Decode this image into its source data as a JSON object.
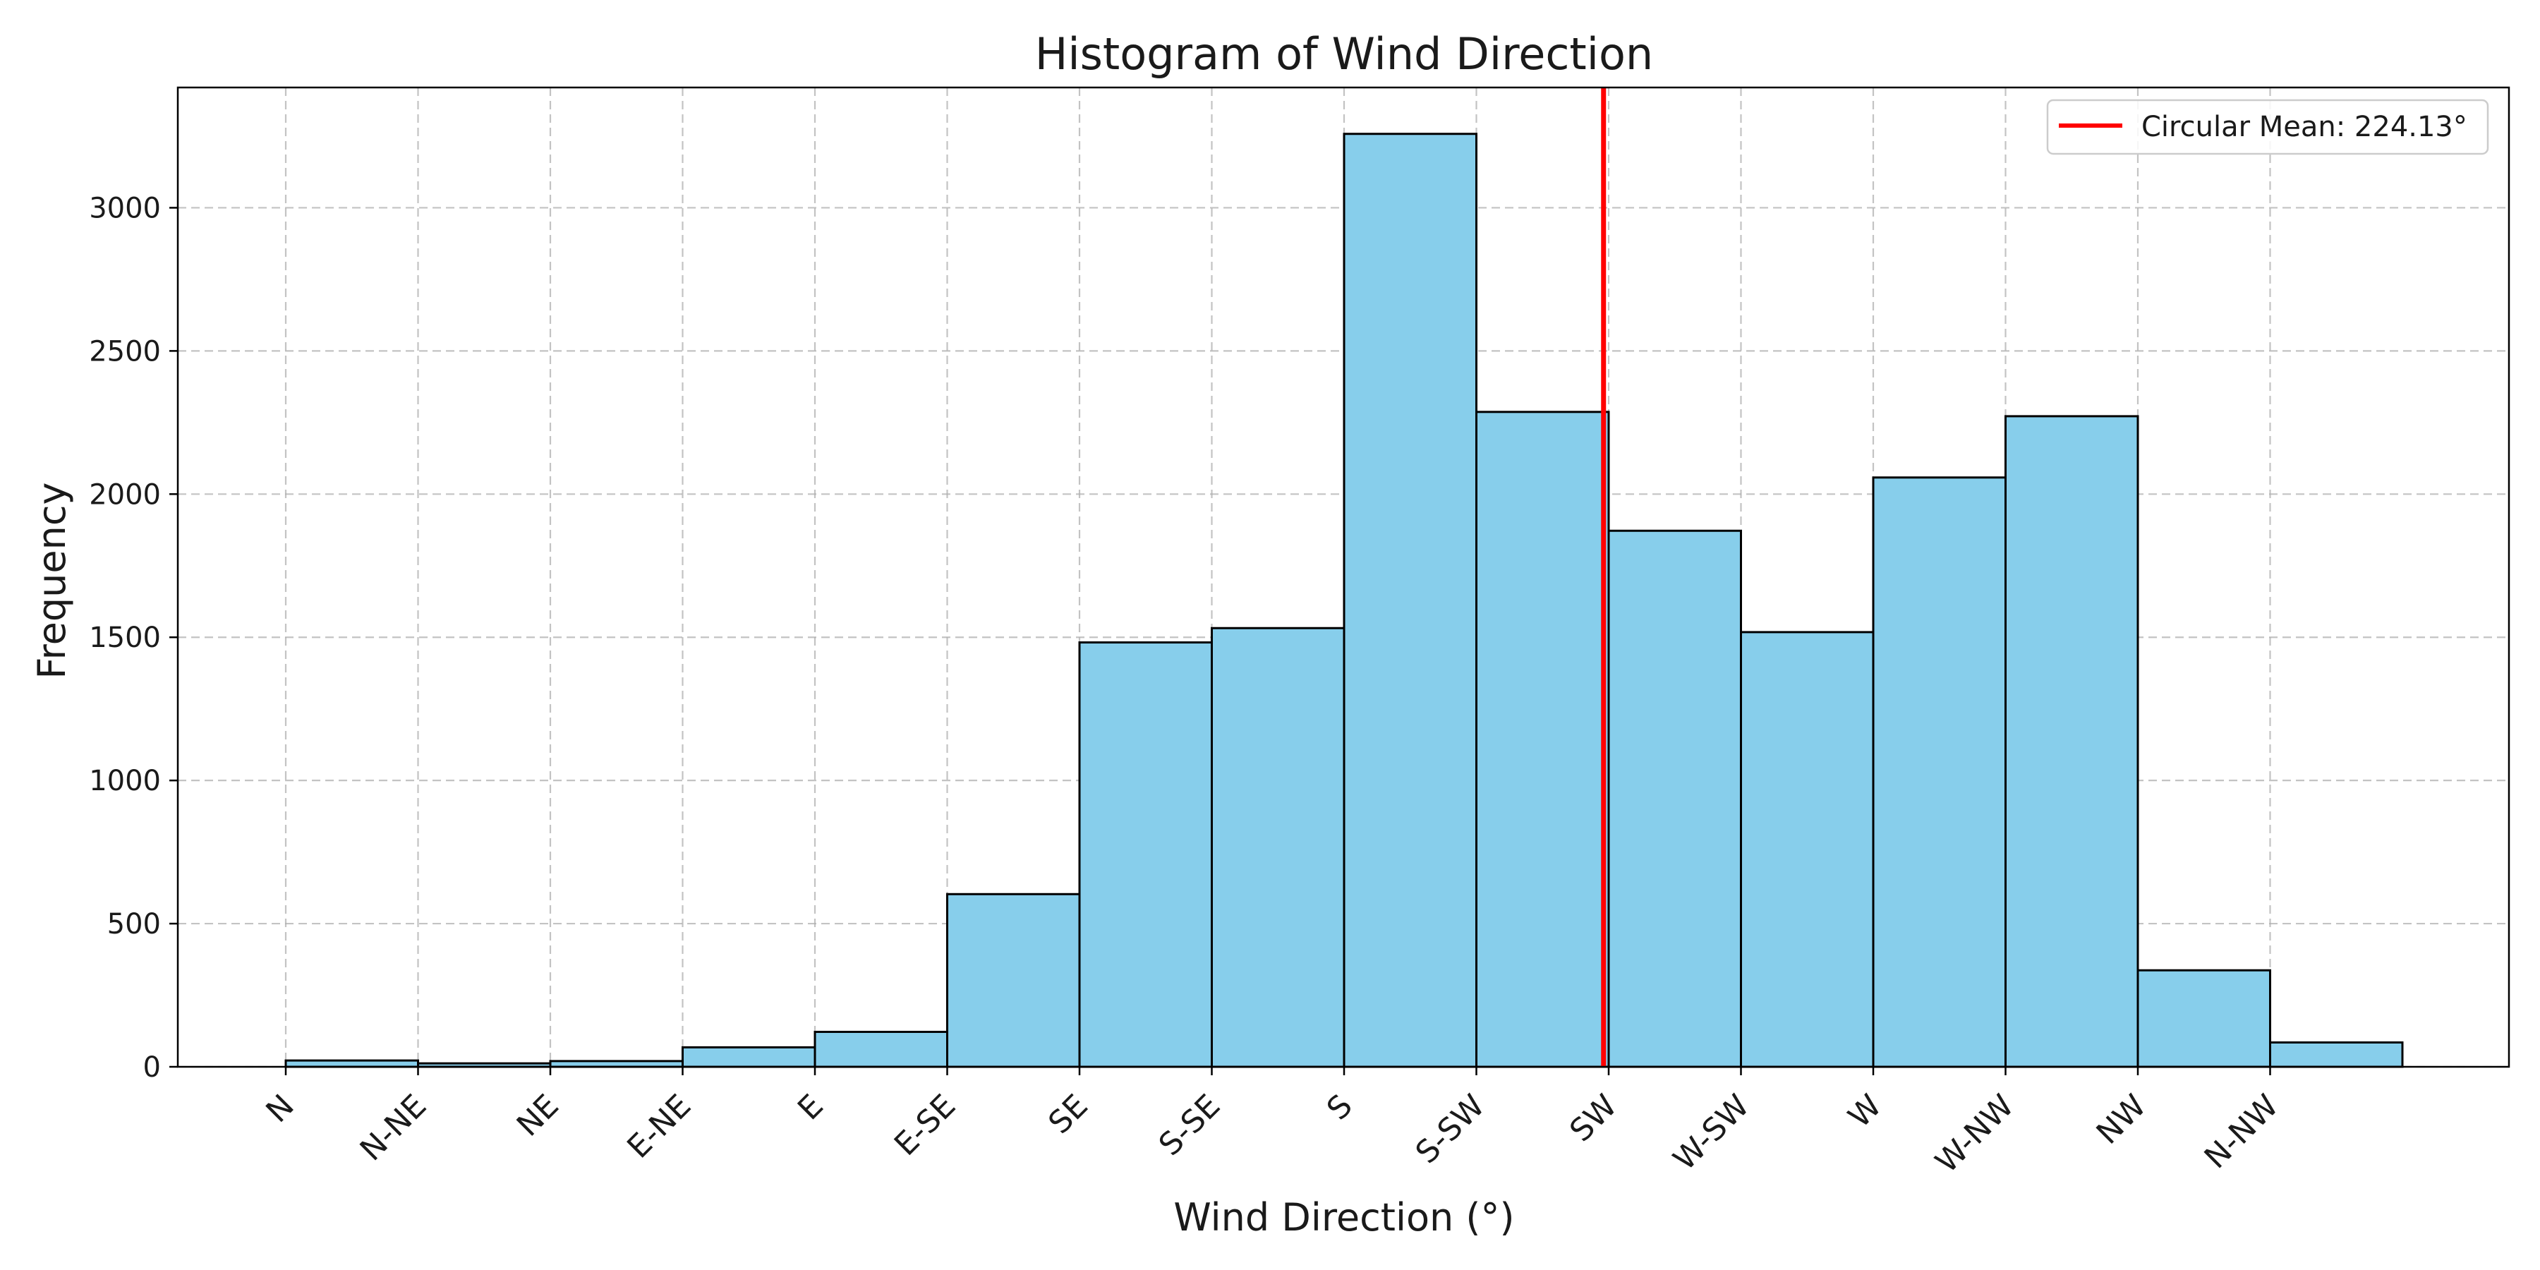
{
  "chart_data": {
    "type": "bar",
    "title": "Histogram of Wind Direction",
    "xlabel": "Wind Direction (°)",
    "ylabel": "Frequency",
    "categories": [
      "N",
      "N-NE",
      "NE",
      "E-NE",
      "E",
      "E-SE",
      "SE",
      "S-SE",
      "S",
      "S-SW",
      "SW",
      "W-SW",
      "W",
      "W-NW",
      "NW",
      "N-NW"
    ],
    "values": [
      22,
      12,
      20,
      68,
      122,
      603,
      1482,
      1532,
      3258,
      2287,
      1872,
      1518,
      2058,
      2272,
      337,
      85
    ],
    "ylim": [
      0,
      3420
    ],
    "yticks": [
      0,
      500,
      1000,
      1500,
      2000,
      2500,
      3000
    ],
    "mean_line": {
      "label": "Circular Mean: 224.13°",
      "value": 224.13,
      "color": "#ff0000"
    },
    "bar_color": "#87ceeb",
    "edge_color": "#000000",
    "grid": true,
    "legend_position": "top-right"
  }
}
